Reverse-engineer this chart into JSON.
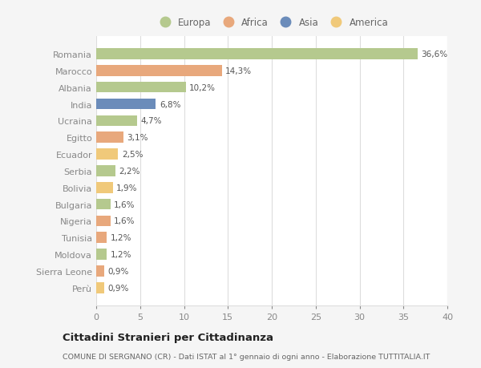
{
  "countries": [
    "Romania",
    "Marocco",
    "Albania",
    "India",
    "Ucraina",
    "Egitto",
    "Ecuador",
    "Serbia",
    "Bolivia",
    "Bulgaria",
    "Nigeria",
    "Tunisia",
    "Moldova",
    "Sierra Leone",
    "Perù"
  ],
  "values": [
    36.6,
    14.3,
    10.2,
    6.8,
    4.7,
    3.1,
    2.5,
    2.2,
    1.9,
    1.6,
    1.6,
    1.2,
    1.2,
    0.9,
    0.9
  ],
  "labels": [
    "36,6%",
    "14,3%",
    "10,2%",
    "6,8%",
    "4,7%",
    "3,1%",
    "2,5%",
    "2,2%",
    "1,9%",
    "1,6%",
    "1,6%",
    "1,2%",
    "1,2%",
    "0,9%",
    "0,9%"
  ],
  "colors": [
    "#b5c98e",
    "#e8a87c",
    "#b5c98e",
    "#6b8cba",
    "#b5c98e",
    "#e8a87c",
    "#f0c97a",
    "#b5c98e",
    "#f0c97a",
    "#b5c98e",
    "#e8a87c",
    "#e8a87c",
    "#b5c98e",
    "#e8a87c",
    "#f0c97a"
  ],
  "legend": {
    "Europa": "#b5c98e",
    "Africa": "#e8a87c",
    "Asia": "#6b8cba",
    "America": "#f0c97a"
  },
  "title": "Cittadini Stranieri per Cittadinanza",
  "subtitle": "COMUNE DI SERGNANO (CR) - Dati ISTAT al 1° gennaio di ogni anno - Elaborazione TUTTITALIA.IT",
  "xlim": [
    0,
    40
  ],
  "xticks": [
    0,
    5,
    10,
    15,
    20,
    25,
    30,
    35,
    40
  ],
  "background_color": "#f5f5f5",
  "bar_background": "#ffffff"
}
